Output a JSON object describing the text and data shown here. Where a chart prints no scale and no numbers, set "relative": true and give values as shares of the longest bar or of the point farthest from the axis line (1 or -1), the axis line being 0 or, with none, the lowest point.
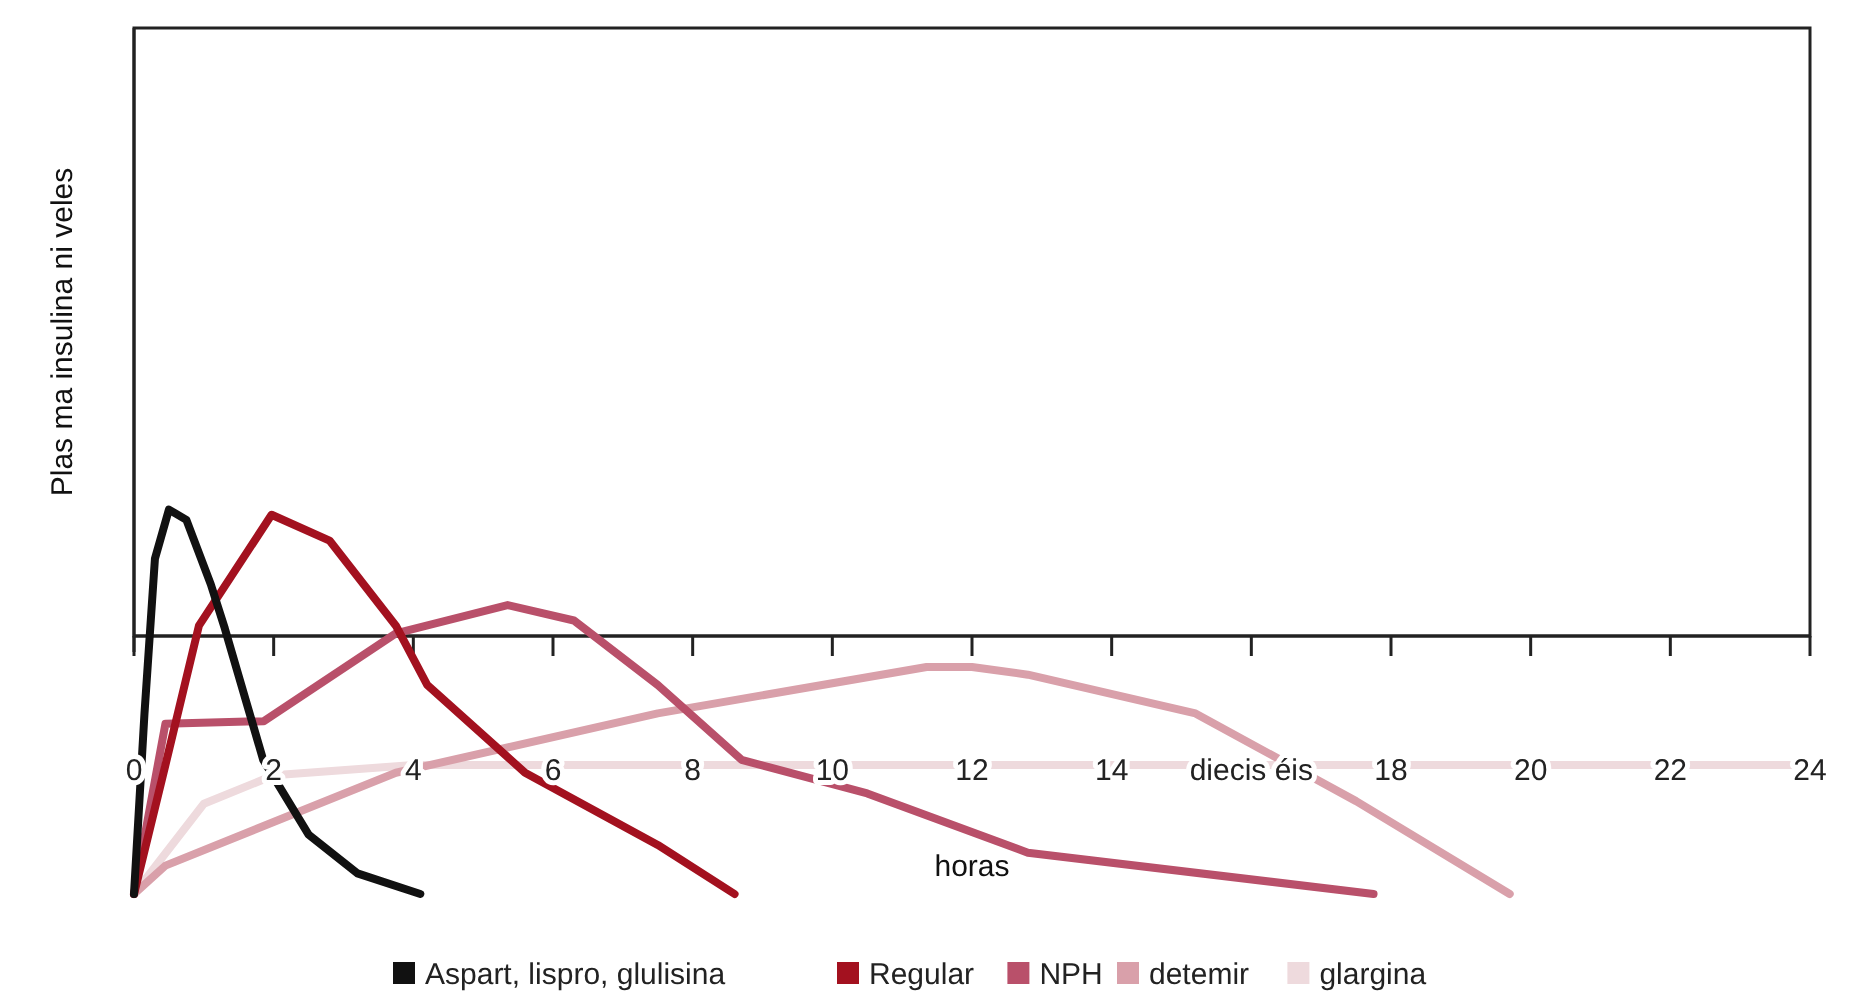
{
  "chart_data": {
    "type": "line",
    "relative": true,
    "xlabel": "horas",
    "ylabel": "Plas ma insulina ni veles",
    "xlim": [
      0,
      24
    ],
    "xticks": [
      0,
      2,
      4,
      6,
      8,
      10,
      12,
      14,
      {
        "value": 16,
        "label": "diecis éis"
      },
      18,
      20,
      22,
      24
    ],
    "legend": "bottom",
    "series": [
      {
        "name": "Aspart, lispro, glulisina",
        "color": "#111111",
        "x": [
          0,
          0.15,
          0.3,
          0.5,
          0.75,
          1.1,
          1.3,
          1.85,
          2.5,
          3.2,
          4.1
        ],
        "values": [
          -1,
          -0.3,
          0.3,
          0.49,
          0.45,
          0.2,
          0.03,
          -0.48,
          -0.77,
          -0.92,
          -1
        ]
      },
      {
        "name": "Regular",
        "color": "#a3111f",
        "x": [
          0,
          0.45,
          0.93,
          1.97,
          2.8,
          3.75,
          4.2,
          5.6,
          7.5,
          8.6
        ],
        "values": [
          -1,
          -0.5,
          0.04,
          0.47,
          0.37,
          0.04,
          -0.19,
          -0.53,
          -0.81,
          -1
        ]
      },
      {
        "name": "NPH",
        "color": "#b9506a",
        "x": [
          0,
          0.45,
          1.86,
          3.75,
          5.35,
          6.3,
          7.5,
          8.7,
          10.5,
          12.8,
          17.75
        ],
        "values": [
          -1,
          -0.34,
          -0.33,
          0.01,
          0.12,
          0.06,
          -0.19,
          -0.48,
          -0.61,
          -0.84,
          -1
        ]
      },
      {
        "name": "detemir",
        "color": "#d9a0aa",
        "x": [
          0,
          0.45,
          3.75,
          7.5,
          11.35,
          12,
          12.8,
          15.2,
          17.5,
          19.7
        ],
        "values": [
          -1,
          -0.89,
          -0.53,
          -0.3,
          -0.12,
          -0.12,
          -0.15,
          -0.3,
          -0.64,
          -1
        ]
      },
      {
        "name": "glargina",
        "color": "#eedadd",
        "x": [
          0,
          1,
          2,
          4,
          8,
          12,
          16,
          20,
          24
        ],
        "values": [
          -1,
          -0.65,
          -0.54,
          -0.5,
          -0.5,
          -0.5,
          -0.5,
          -0.5,
          -0.5
        ]
      }
    ]
  }
}
